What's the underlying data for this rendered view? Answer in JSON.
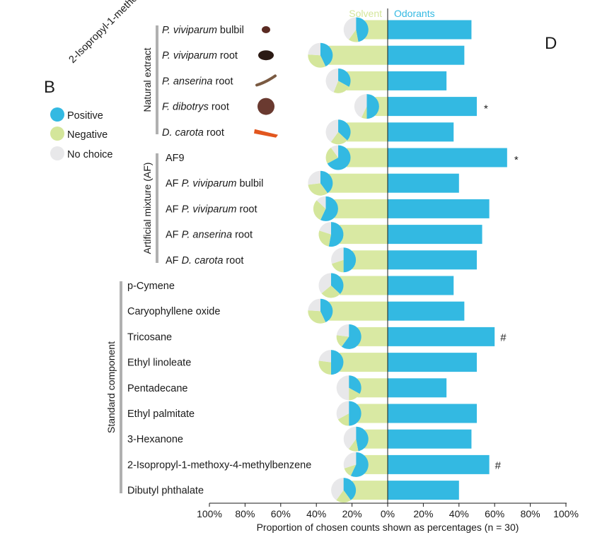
{
  "panels": {
    "left": "B",
    "right": "D"
  },
  "cutoff_label": "2-Isopropyl-1-metho",
  "legend": [
    {
      "label": "Positive",
      "color": "#33b9e2"
    },
    {
      "label": "Negative",
      "color": "#d4e69b"
    },
    {
      "label": "No choice",
      "color": "#e8e8ea"
    }
  ],
  "colors": {
    "positive": "#33b9e2",
    "negative": "#d4e69b",
    "nochoice": "#e8e8ea",
    "solvent_bar": "#d9e9a3",
    "odorant_bar": "#33b9e2"
  },
  "chart_data": {
    "type": "bar",
    "orientation": "horizontal-diverging",
    "header_left": "Solvent",
    "header_right": "Odorants",
    "xlabel": "Proportion of chosen counts shown as percentages (n = 30)",
    "xlim": [
      -100,
      100
    ],
    "xticks": [
      "100%",
      "80%",
      "60%",
      "40%",
      "20%",
      "0%",
      "20%",
      "40%",
      "60%",
      "80%",
      "100%"
    ],
    "groups": [
      {
        "name": "Natural extract",
        "rows": [
          {
            "label_italic": "P. viviparum",
            "label_rest": " bulbil",
            "solvent": 13,
            "odorant": 47,
            "sig": "",
            "icon": "bulbil"
          },
          {
            "label_italic": "P. viviparum",
            "label_rest": " root",
            "solvent": 33,
            "odorant": 43,
            "sig": "",
            "icon": "root1"
          },
          {
            "label_italic": "P. anserina",
            "label_rest": " root",
            "solvent": 23,
            "odorant": 33,
            "sig": "",
            "icon": "root2"
          },
          {
            "label_italic": "F. dibotrys",
            "label_rest": " root",
            "solvent": 7,
            "odorant": 50,
            "sig": "*",
            "icon": "root3"
          },
          {
            "label_italic": "D. carota",
            "label_rest": " root",
            "solvent": 23,
            "odorant": 37,
            "sig": "",
            "icon": "carrot"
          }
        ]
      },
      {
        "name": "Artificial mixture (AF)",
        "rows": [
          {
            "label_prefix": "AF9",
            "label_italic": "",
            "label_rest": "",
            "solvent": 23,
            "odorant": 67,
            "sig": "*"
          },
          {
            "label_prefix": "AF ",
            "label_italic": "P. viviparum",
            "label_rest": " bulbil",
            "solvent": 33,
            "odorant": 40,
            "sig": ""
          },
          {
            "label_prefix": "AF ",
            "label_italic": "P. viviparum",
            "label_rest": " root",
            "solvent": 30,
            "odorant": 57,
            "sig": ""
          },
          {
            "label_prefix": "AF ",
            "label_italic": "P. anserina",
            "label_rest": " root",
            "solvent": 27,
            "odorant": 53,
            "sig": ""
          },
          {
            "label_prefix": "AF ",
            "label_italic": "D. carota",
            "label_rest": " root",
            "solvent": 20,
            "odorant": 50,
            "sig": ""
          }
        ]
      },
      {
        "name": "Standard component",
        "rows": [
          {
            "label": "p-Cymene",
            "solvent": 27,
            "odorant": 37,
            "sig": ""
          },
          {
            "label": "Caryophyllene oxide",
            "solvent": 33,
            "odorant": 43,
            "sig": ""
          },
          {
            "label": "Tricosane",
            "solvent": 17,
            "odorant": 60,
            "sig": "#"
          },
          {
            "label": "Ethyl linoleate",
            "solvent": 27,
            "odorant": 50,
            "sig": ""
          },
          {
            "label": "Pentadecane",
            "solvent": 17,
            "odorant": 33,
            "sig": ""
          },
          {
            "label": "Ethyl palmitate",
            "solvent": 17,
            "odorant": 50,
            "sig": ""
          },
          {
            "label": "3-Hexanone",
            "solvent": 13,
            "odorant": 47,
            "sig": ""
          },
          {
            "label": "2-Isopropyl-1-methoxy-4-methylbenzene",
            "solvent": 13,
            "odorant": 57,
            "sig": "#"
          },
          {
            "label": "Dibutyl phthalate",
            "solvent": 20,
            "odorant": 40,
            "sig": ""
          }
        ]
      }
    ]
  }
}
